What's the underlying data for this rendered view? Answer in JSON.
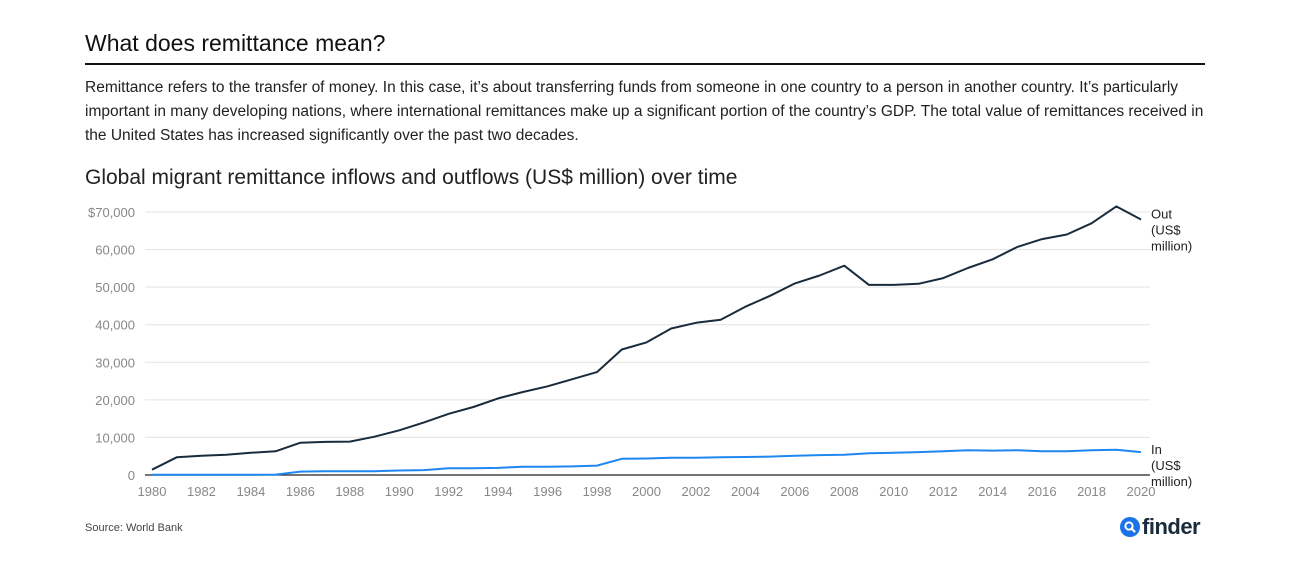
{
  "heading": "What does remittance mean?",
  "paragraph": "Remittance refers to the transfer of money. In this case, it’s about transferring funds from someone in one country to a person in another country. It’s particularly important in many developing nations, where international remittances make up a significant portion of the country’s GDP. The total value of remittances received in the United States has increased significantly over the past two decades.",
  "source": "Source: World Bank",
  "logo": {
    "text": "finder",
    "icon": "search-icon",
    "color": "#1a73e8"
  },
  "chart_data": {
    "type": "line",
    "title": "Global migrant remittance inflows and outflows (US$ million) over time",
    "xlabel": "",
    "ylabel": "",
    "ylim": [
      0,
      70000
    ],
    "yticks": [
      0,
      10000,
      20000,
      30000,
      40000,
      50000,
      60000,
      70000
    ],
    "ytick_labels": [
      "0",
      "10,000",
      "20,000",
      "30,000",
      "40,000",
      "50,000",
      "60,000",
      "$70,000"
    ],
    "xticks": [
      1980,
      1982,
      1984,
      1986,
      1988,
      1990,
      1992,
      1994,
      1996,
      1998,
      2000,
      2002,
      2004,
      2006,
      2008,
      2010,
      2012,
      2014,
      2016,
      2018,
      2020
    ],
    "grid": true,
    "x": [
      1980,
      1981,
      1982,
      1983,
      1984,
      1985,
      1986,
      1987,
      1988,
      1989,
      1990,
      1991,
      1992,
      1993,
      1994,
      1995,
      1996,
      1997,
      1998,
      1999,
      2000,
      2001,
      2002,
      2003,
      2004,
      2005,
      2006,
      2007,
      2008,
      2009,
      2010,
      2011,
      2012,
      2013,
      2014,
      2015,
      2016,
      2017,
      2018,
      2019,
      2020
    ],
    "series": [
      {
        "name": "Out (US$ million)",
        "label_lines": [
          "Out",
          "(US$",
          "million)"
        ],
        "color": "#1a2b3c",
        "values": [
          1400,
          4700,
          5100,
          5400,
          5900,
          6300,
          8600,
          8800,
          8900,
          10200,
          11900,
          14000,
          16300,
          18100,
          20400,
          22100,
          23600,
          25500,
          27400,
          33400,
          35300,
          39000,
          40500,
          41300,
          44800,
          47700,
          51000,
          53100,
          55700,
          50600,
          50600,
          50900,
          52400,
          55100,
          57400,
          60700,
          62800,
          64000,
          67000,
          71500,
          68000
        ]
      },
      {
        "name": "In (US$ million)",
        "label_lines": [
          "In",
          "(US$",
          "million)"
        ],
        "color": "#1e88f0",
        "values": [
          50,
          50,
          50,
          50,
          50,
          100,
          900,
          1000,
          1000,
          1000,
          1200,
          1300,
          1800,
          1800,
          1900,
          2200,
          2200,
          2300,
          2500,
          4300,
          4400,
          4600,
          4600,
          4700,
          4800,
          4900,
          5100,
          5300,
          5400,
          5800,
          5900,
          6100,
          6300,
          6600,
          6500,
          6600,
          6300,
          6300,
          6600,
          6700,
          6100
        ]
      }
    ]
  }
}
